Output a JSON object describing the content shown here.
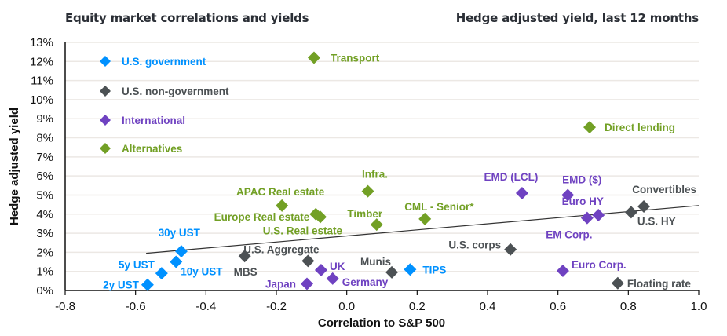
{
  "header": {
    "title_left": "Equity market correlations and yields",
    "title_right": "Hedge adjusted yield, last 12 months"
  },
  "chart_data": {
    "type": "scatter",
    "title": "Equity market correlations and yields",
    "subtitle": "Hedge adjusted yield, last 12 months",
    "xlabel": "Correlation to S&P 500",
    "ylabel": "Hedge adjusted yield",
    "xlim": [
      -0.8,
      1.0
    ],
    "ylim": [
      0,
      13
    ],
    "x_ticks": [
      "-0.8",
      "-0.6",
      "-0.4",
      "-0.2",
      "0.0",
      "0.2",
      "0.4",
      "0.6",
      "0.8",
      "1.0"
    ],
    "y_ticks": [
      "0%",
      "1%",
      "2%",
      "3%",
      "4%",
      "5%",
      "6%",
      "7%",
      "8%",
      "9%",
      "10%",
      "11%",
      "12%",
      "13%"
    ],
    "grid": "horizontal",
    "legend_position": "top-left",
    "series": [
      {
        "name": "U.S. government",
        "color": "#0091ff",
        "points": [
          {
            "label": "2y UST",
            "x": -0.566,
            "y": 0.3
          },
          {
            "label": "5y UST",
            "x": -0.526,
            "y": 0.9
          },
          {
            "label": "10y UST",
            "x": -0.485,
            "y": 1.5
          },
          {
            "label": "30y UST",
            "x": -0.47,
            "y": 2.05
          },
          {
            "label": "TIPS",
            "x": 0.18,
            "y": 1.1
          }
        ]
      },
      {
        "name": "U.S. non-government",
        "color": "#4c5154",
        "points": [
          {
            "label": "MBS",
            "x": -0.29,
            "y": 1.8
          },
          {
            "label": "U.S. Aggregate",
            "x": -0.11,
            "y": 1.55
          },
          {
            "label": "Munis",
            "x": 0.128,
            "y": 0.95
          },
          {
            "label": "U.S. corps",
            "x": 0.465,
            "y": 2.15
          },
          {
            "label": "Floating rate",
            "x": 0.77,
            "y": 0.38
          },
          {
            "label": "Convertibles",
            "x": 0.844,
            "y": 4.4
          },
          {
            "label": "U.S. HY",
            "x": 0.808,
            "y": 4.1
          }
        ]
      },
      {
        "name": "International",
        "color": "#6f42c1",
        "points": [
          {
            "label": "Japan",
            "x": -0.113,
            "y": 0.35
          },
          {
            "label": "UK",
            "x": -0.073,
            "y": 1.07
          },
          {
            "label": "Germany",
            "x": -0.04,
            "y": 0.62
          },
          {
            "label": "EMD (LCL)",
            "x": 0.498,
            "y": 5.1
          },
          {
            "label": "EMD ($)",
            "x": 0.628,
            "y": 5.0
          },
          {
            "label": "Euro HY",
            "x": 0.715,
            "y": 3.95
          },
          {
            "label": "EM Corp.",
            "x": 0.683,
            "y": 3.8
          },
          {
            "label": "Euro Corp.",
            "x": 0.614,
            "y": 1.03
          }
        ]
      },
      {
        "name": "Alternatives",
        "color": "#72a025",
        "points": [
          {
            "label": "Transport",
            "x": -0.093,
            "y": 12.2
          },
          {
            "label": "Direct lending",
            "x": 0.69,
            "y": 8.55
          },
          {
            "label": "APAC Real estate",
            "x": -0.184,
            "y": 4.45
          },
          {
            "label": "Europe Real estate",
            "x": -0.088,
            "y": 4.0
          },
          {
            "label": "U.S. Real estate",
            "x": -0.075,
            "y": 3.85
          },
          {
            "label": "Infra.",
            "x": 0.06,
            "y": 5.2
          },
          {
            "label": "Timber",
            "x": 0.085,
            "y": 3.45
          },
          {
            "label": "CML - Senior*",
            "x": 0.222,
            "y": 3.75
          }
        ]
      }
    ],
    "trendline": {
      "x": [
        -0.57,
        1.0
      ],
      "y": [
        1.95,
        4.45
      ],
      "color": "#333333"
    }
  }
}
